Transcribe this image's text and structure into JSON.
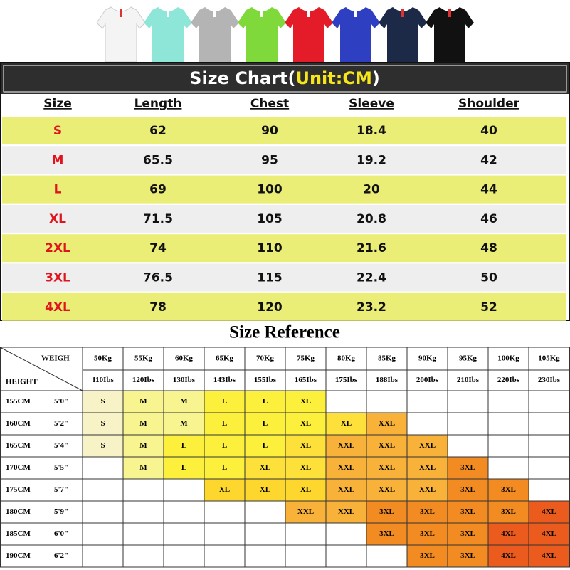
{
  "size_chart": {
    "title": "Size Chart(",
    "title_unit": "Unit:CM",
    "title_end": ")",
    "headers": [
      "Size",
      "Length",
      "Chest",
      "Sleeve",
      "Shoulder"
    ],
    "rows": [
      [
        "S",
        "62",
        "90",
        "18.4",
        "40"
      ],
      [
        "M",
        "65.5",
        "95",
        "19.2",
        "42"
      ],
      [
        "L",
        "69",
        "100",
        "20",
        "44"
      ],
      [
        "XL",
        "71.5",
        "105",
        "20.8",
        "46"
      ],
      [
        "2XL",
        "74",
        "110",
        "21.6",
        "48"
      ],
      [
        "3XL",
        "76.5",
        "115",
        "22.4",
        "50"
      ],
      [
        "4XL",
        "78",
        "120",
        "23.2",
        "52"
      ]
    ]
  },
  "size_reference": {
    "title": "Size Reference",
    "weigh_label": "WEIGH",
    "height_label": "HEIGHT",
    "weights_kg": [
      "50Kg",
      "55Kg",
      "60Kg",
      "65Kg",
      "70Kg",
      "75Kg",
      "80Kg",
      "85Kg",
      "90Kg",
      "95Kg",
      "100Kg",
      "105Kg"
    ],
    "weights_lbs": [
      "110Ibs",
      "120Ibs",
      "130Ibs",
      "143Ibs",
      "155Ibs",
      "165Ibs",
      "175Ibs",
      "188Ibs",
      "200Ibs",
      "210Ibs",
      "220Ibs",
      "230Ibs"
    ],
    "rows": [
      {
        "cm": "155CM",
        "ft": "5'0\"",
        "sizes": [
          "S",
          "M",
          "M",
          "L",
          "L",
          "XL",
          null,
          null,
          null,
          null,
          null,
          null
        ],
        "colors": [
          "#f7f3c6",
          "#f8f48f",
          "#f8f48f",
          "#fdf03c",
          "#fdf03c",
          "#fdf03c",
          null,
          null,
          null,
          null,
          null,
          null
        ]
      },
      {
        "cm": "160CM",
        "ft": "5'2\"",
        "sizes": [
          "S",
          "M",
          "M",
          "L",
          "L",
          "XL",
          "XL",
          "XXL",
          null,
          null,
          null,
          null
        ],
        "colors": [
          "#f7f3c6",
          "#f8f48f",
          "#f8f48f",
          "#fdf03c",
          "#fdf03c",
          "#fdf03c",
          "#fde13a",
          "#f8b23a",
          null,
          null,
          null,
          null
        ]
      },
      {
        "cm": "165CM",
        "ft": "5'4\"",
        "sizes": [
          "S",
          "M",
          "L",
          "L",
          "L",
          "XL",
          "XXL",
          "XXL",
          "XXL",
          null,
          null,
          null
        ],
        "colors": [
          "#f7f3c6",
          "#f8f48f",
          "#fdf03c",
          "#fdf03c",
          "#fdf03c",
          "#fde13a",
          "#f8b23a",
          "#f8b23a",
          "#f8b23a",
          null,
          null,
          null
        ]
      },
      {
        "cm": "170CM",
        "ft": "5'5\"",
        "sizes": [
          null,
          "M",
          "L",
          "L",
          "XL",
          "XL",
          "XXL",
          "XXL",
          "XXL",
          "3XL",
          null,
          null
        ],
        "colors": [
          null,
          "#f8f48f",
          "#fdf03c",
          "#fdf03c",
          "#fde13a",
          "#fde13a",
          "#f8b23a",
          "#f8b23a",
          "#f8b23a",
          "#f28b22",
          null,
          null
        ]
      },
      {
        "cm": "175CM",
        "ft": "5'7\"",
        "sizes": [
          null,
          null,
          null,
          "XL",
          "XL",
          "XL",
          "XXL",
          "XXL",
          "XXL",
          "3XL",
          "3XL",
          null
        ],
        "colors": [
          null,
          null,
          null,
          "#fdd72e",
          "#fdd72e",
          "#fdd72e",
          "#f8b23a",
          "#f8b23a",
          "#f8b23a",
          "#f28b22",
          "#f28b22",
          null
        ]
      },
      {
        "cm": "180CM",
        "ft": "5'9\"",
        "sizes": [
          null,
          null,
          null,
          null,
          null,
          "XXL",
          "XXL",
          "3XL",
          "3XL",
          "3XL",
          "3XL",
          "4XL"
        ],
        "colors": [
          null,
          null,
          null,
          null,
          null,
          "#f8b23a",
          "#f8b23a",
          "#f28b22",
          "#f28b22",
          "#f28b22",
          "#f28b22",
          "#ec5b1e"
        ]
      },
      {
        "cm": "185CM",
        "ft": "6'0\"",
        "sizes": [
          null,
          null,
          null,
          null,
          null,
          null,
          null,
          "3XL",
          "3XL",
          "3XL",
          "4XL",
          "4XL"
        ],
        "colors": [
          null,
          null,
          null,
          null,
          null,
          null,
          null,
          "#f28b22",
          "#f28b22",
          "#f28b22",
          "#ec5b1e",
          "#ec5b1e"
        ]
      },
      {
        "cm": "190CM",
        "ft": "6'2\"",
        "sizes": [
          null,
          null,
          null,
          null,
          null,
          null,
          null,
          null,
          "3XL",
          "3XL",
          "4XL",
          "4XL"
        ],
        "colors": [
          null,
          null,
          null,
          null,
          null,
          null,
          null,
          null,
          "#f28b22",
          "#f28b22",
          "#ec5b1e",
          "#ec5b1e"
        ]
      }
    ]
  }
}
